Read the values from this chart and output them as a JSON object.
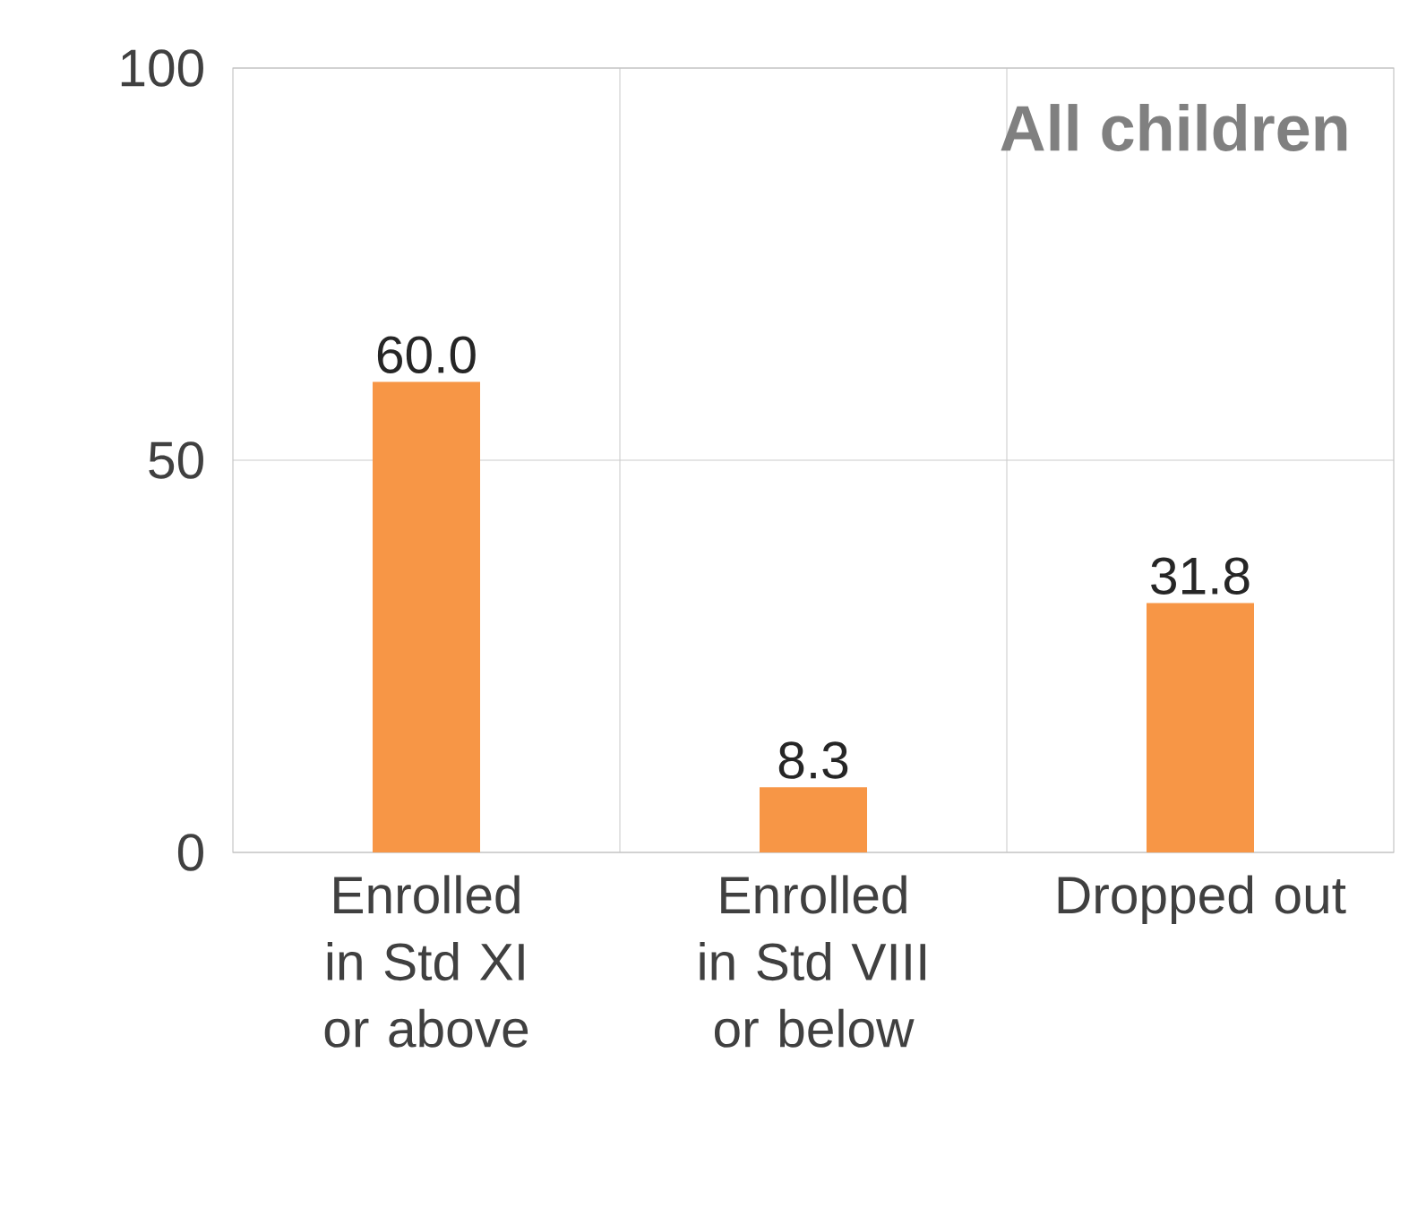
{
  "chart_data": {
    "type": "bar",
    "title": "All children",
    "categories": [
      "Enrolled in Std XI or above",
      "Enrolled in Std VIII or below",
      "Dropped out"
    ],
    "values": [
      60.0,
      8.3,
      31.8
    ],
    "value_labels": [
      "60.0",
      "8.3",
      "31.8"
    ],
    "color": "#f79646",
    "ylim": [
      0,
      100
    ],
    "yticks": [
      0,
      50,
      100
    ],
    "grid": true
  }
}
